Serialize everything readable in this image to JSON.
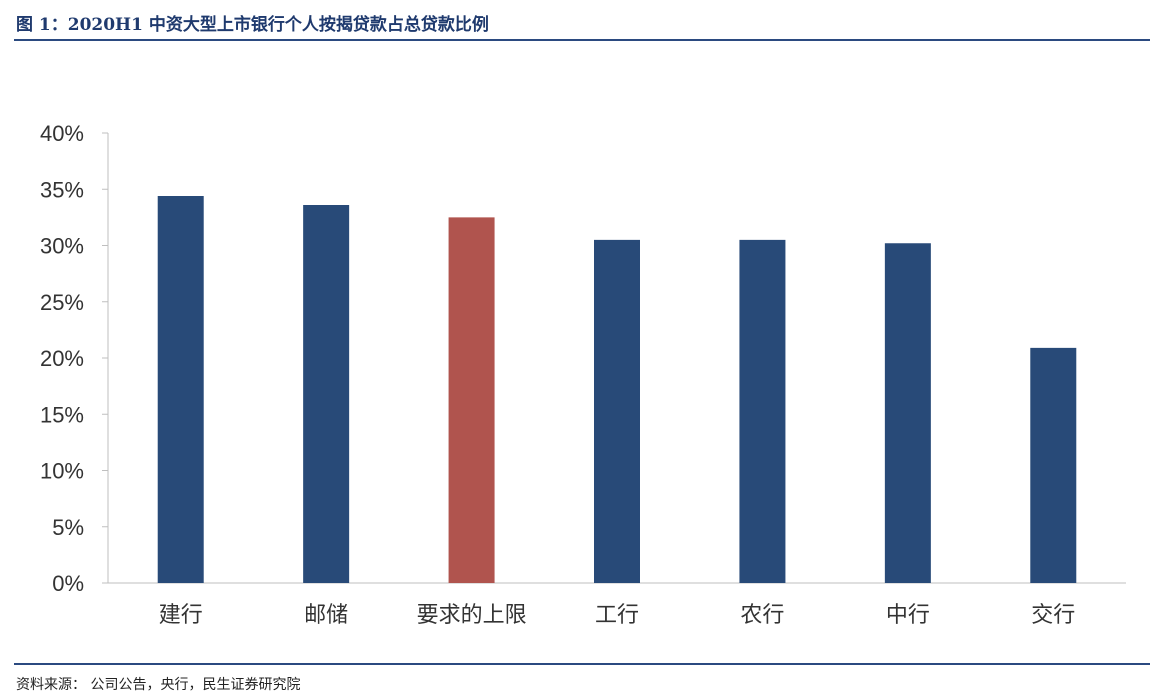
{
  "header": {
    "title": "图 1：2020H1 中资大型上市银行个人按揭贷款占总贷款比例"
  },
  "footer": {
    "source": "资料来源： 公司公告，央行，民生证券研究院"
  },
  "chart_data": {
    "type": "bar",
    "title": "图 1：2020H1 中资大型上市银行个人按揭贷款占总贷款比例",
    "xlabel": "",
    "ylabel": "",
    "categories": [
      "建行",
      "邮储",
      "要求的上限",
      "工行",
      "农行",
      "中行",
      "交行"
    ],
    "values": [
      34.4,
      33.6,
      32.5,
      30.5,
      30.5,
      30.2,
      20.9
    ],
    "unit": "%",
    "ylim": [
      0,
      40
    ],
    "yticks": [
      0,
      5,
      10,
      15,
      20,
      25,
      30,
      35,
      40
    ],
    "ytick_labels": [
      "0%",
      "5%",
      "10%",
      "15%",
      "20%",
      "25%",
      "30%",
      "35%",
      "40%"
    ],
    "grid": false,
    "legend": "none",
    "colors": {
      "default": "#284a78",
      "highlight": "#b0544e",
      "highlight_index": 2
    }
  }
}
